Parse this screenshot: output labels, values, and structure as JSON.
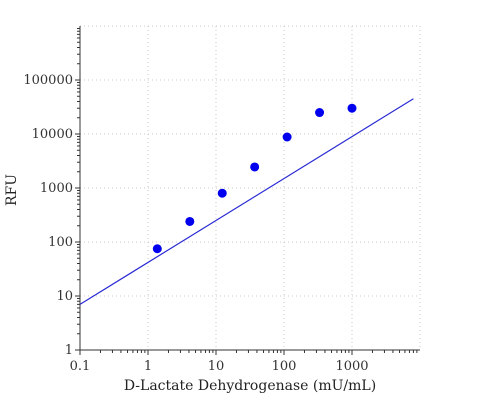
{
  "chart_data": {
    "type": "scatter",
    "xscale": "log",
    "yscale": "log",
    "xlim": [
      0.1,
      10000
    ],
    "ylim": [
      1,
      1000000
    ],
    "xticks": [
      0.1,
      1,
      10,
      100,
      1000
    ],
    "xtick_labels": [
      "0.1",
      "1",
      "10",
      "100",
      "1000"
    ],
    "yticks": [
      1,
      10,
      100,
      1000,
      10000,
      100000
    ],
    "ytick_labels": [
      "1",
      "10",
      "100",
      "1000",
      "10000",
      "100000"
    ],
    "xlabel": "D-Lactate Dehydrogenase (mU/mL)",
    "ylabel": "RFU",
    "grid": true,
    "points": [
      {
        "x": 1.37,
        "y": 75
      },
      {
        "x": 4.12,
        "y": 240
      },
      {
        "x": 12.35,
        "y": 800
      },
      {
        "x": 37.04,
        "y": 2450
      },
      {
        "x": 111.1,
        "y": 8800
      },
      {
        "x": 333.3,
        "y": 25000
      },
      {
        "x": 1000,
        "y": 30000
      }
    ],
    "fit_line": [
      {
        "x": 0.1,
        "y": 7
      },
      {
        "x": 8000,
        "y": 45000
      }
    ],
    "colors": {
      "points": "#0000ee",
      "line": "#2a2ad4"
    }
  }
}
